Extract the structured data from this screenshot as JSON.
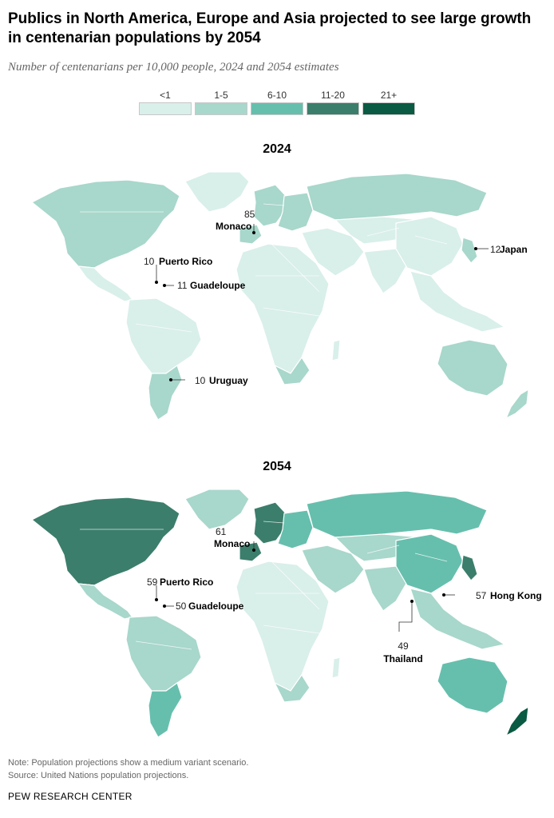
{
  "title": "Publics in North America, Europe and Asia projected to see large growth in centenarian populations by 2054",
  "subtitle": "Number of centenarians per 10,000 people, 2024 and 2054 estimates",
  "legend": [
    {
      "label": "<1",
      "color": "#d9efea"
    },
    {
      "label": "1-5",
      "color": "#a8d7cb"
    },
    {
      "label": "6-10",
      "color": "#66bfad"
    },
    {
      "label": "11-20",
      "color": "#3b7e6b"
    },
    {
      "label": "21+",
      "color": "#0b5a43"
    }
  ],
  "maps": [
    {
      "year": "2024",
      "regions": {
        "north_america": "1-5",
        "greenland": "<1",
        "central_america": "<1",
        "south_america": "<1",
        "southern_cone": "1-5",
        "europe_west": "1-5",
        "europe_iberia": "1-5",
        "europe_east": "1-5",
        "russia": "1-5",
        "middle_east": "<1",
        "central_asia": "<1",
        "africa": "<1",
        "south_africa": "1-5",
        "madagascar": "<1",
        "south_asia": "<1",
        "east_asia": "<1",
        "korea_taiwan": "1-5",
        "southeast_asia": "<1",
        "australia": "1-5",
        "new_zealand": "1-5"
      },
      "callouts": [
        {
          "value": "85",
          "name": "Monaco"
        },
        {
          "value": "12",
          "name": "Japan"
        },
        {
          "value": "10",
          "name": "Puerto Rico"
        },
        {
          "value": "11",
          "name": "Guadeloupe"
        },
        {
          "value": "10",
          "name": "Uruguay"
        }
      ]
    },
    {
      "year": "2054",
      "regions": {
        "north_america": "11-20",
        "greenland": "1-5",
        "central_america": "1-5",
        "south_america": "1-5",
        "southern_cone": "6-10",
        "europe_west": "11-20",
        "europe_iberia": "11-20",
        "europe_east": "6-10",
        "russia": "6-10",
        "middle_east": "1-5",
        "central_asia": "1-5",
        "africa": "<1",
        "south_africa": "1-5",
        "madagascar": "<1",
        "south_asia": "1-5",
        "east_asia": "6-10",
        "korea_taiwan": "11-20",
        "southeast_asia": "1-5",
        "australia": "6-10",
        "new_zealand": "21+"
      },
      "callouts": [
        {
          "value": "61",
          "name": "Monaco"
        },
        {
          "value": "59",
          "name": "Puerto Rico"
        },
        {
          "value": "50",
          "name": "Guadeloupe"
        },
        {
          "value": "57",
          "name": "Hong Kong"
        },
        {
          "value": "49",
          "name": "Thailand"
        }
      ]
    }
  ],
  "notes": {
    "note": "Note: Population projections show a medium variant scenario.",
    "source": "Source: United Nations population projections.",
    "brand": "PEW RESEARCH CENTER"
  }
}
